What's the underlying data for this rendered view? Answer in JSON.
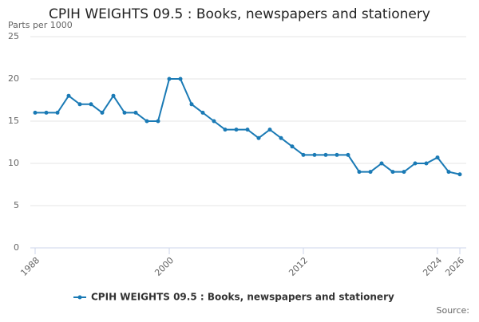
{
  "chart_data": {
    "type": "line",
    "title": "CPIH WEIGHTS 09.5 : Books, newspapers and stationery",
    "y_label": "Parts per 1000",
    "source": "Source:",
    "x": [
      1988,
      1989,
      1990,
      1991,
      1992,
      1993,
      1994,
      1995,
      1996,
      1997,
      1998,
      1999,
      2000,
      2001,
      2002,
      2003,
      2004,
      2005,
      2006,
      2007,
      2008,
      2009,
      2010,
      2011,
      2012,
      2013,
      2014,
      2015,
      2016,
      2017,
      2018,
      2019,
      2020,
      2021,
      2022,
      2023,
      2024,
      2025,
      2026
    ],
    "series": [
      {
        "name": "CPIH WEIGHTS 09.5 : Books, newspapers and stationery",
        "color": "#1a7ab5",
        "values": [
          16,
          16,
          16,
          18,
          17,
          17,
          16,
          18,
          16,
          16,
          15,
          15,
          20,
          20,
          17,
          16,
          15,
          14,
          14,
          14,
          13,
          14,
          13,
          12,
          11,
          11,
          11,
          11,
          11,
          9,
          9,
          10,
          9,
          9,
          10,
          10,
          10.7,
          9,
          8.7
        ]
      }
    ],
    "xlim": [
      1988,
      2026
    ],
    "xticks": [
      1988,
      2000,
      2012,
      2024,
      2026
    ],
    "ylim": [
      0,
      25
    ],
    "yticks": [
      0,
      5,
      10,
      15,
      20,
      25
    ],
    "grid": true
  }
}
